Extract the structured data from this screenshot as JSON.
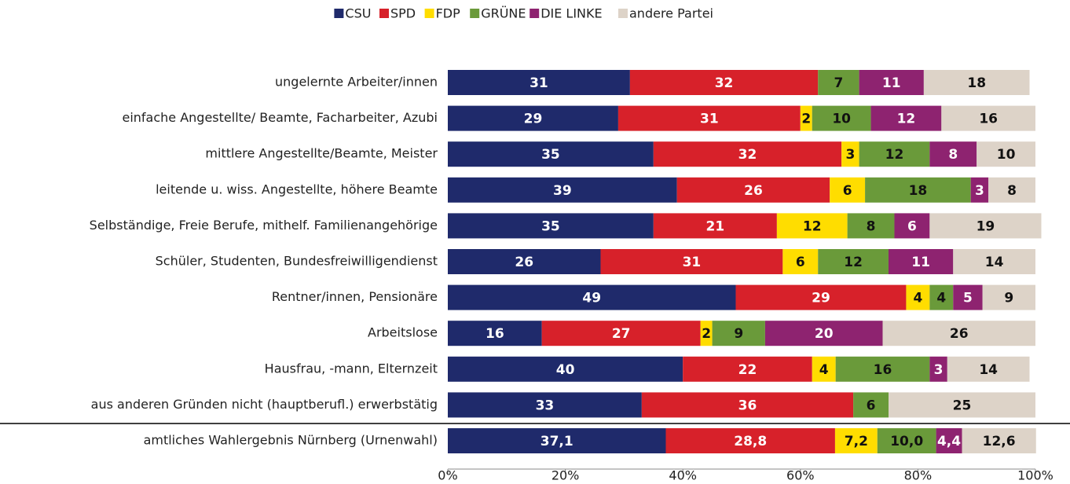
{
  "chart_data": {
    "type": "stacked-bar-horizontal",
    "categories": [
      "ungelernte Arbeiter/innen",
      "einfache Angestellte/ Beamte, Facharbeiter, Azubi",
      "mittlere Angestellte/Beamte, Meister",
      "leitende u. wiss. Angestellte, höhere Beamte",
      "Selbständige, Freie Berufe, mithelf. Familienangehörige",
      "Schüler, Studenten, Bundesfreiwilligendienst",
      "Rentner/innen, Pensionäre",
      "Arbeitslose",
      "Hausfrau, -mann, Elternzeit",
      "aus anderen Gründen nicht (hauptberufl.) erwerbstätig",
      "amtliches Wahlergebnis Nürnberg (Urnenwahl)"
    ],
    "series": [
      {
        "name": "CSU",
        "color": "#1f2a6b",
        "values": [
          31,
          29,
          35,
          39,
          35,
          26,
          49,
          16,
          40,
          33,
          37.1
        ],
        "value_labels": [
          "31",
          "29",
          "35",
          "39",
          "35",
          "26",
          "49",
          "16",
          "40",
          "33",
          "37,1"
        ]
      },
      {
        "name": "SPD",
        "color": "#d7212a",
        "values": [
          32,
          31,
          32,
          26,
          21,
          31,
          29,
          27,
          22,
          36,
          28.8
        ],
        "value_labels": [
          "32",
          "31",
          "32",
          "26",
          "21",
          "31",
          "29",
          "27",
          "22",
          "36",
          "28,8"
        ]
      },
      {
        "name": "FDP",
        "color": "#ffdd00",
        "values": [
          null,
          2,
          3,
          6,
          12,
          6,
          4,
          2,
          4,
          null,
          7.2
        ],
        "value_labels": [
          null,
          "2",
          "3",
          "6",
          "12",
          "6",
          "4",
          "2",
          "4",
          null,
          "7,2"
        ]
      },
      {
        "name": "GRÜNE",
        "color": "#6a9a3a",
        "values": [
          7,
          10,
          12,
          18,
          8,
          12,
          4,
          9,
          16,
          6,
          10.0
        ],
        "value_labels": [
          "7",
          "10",
          "12",
          "18",
          "8",
          "12",
          "4",
          "9",
          "16",
          "6",
          "10,0"
        ]
      },
      {
        "name": "DIE LINKE",
        "color": "#8e2370",
        "values": [
          11,
          12,
          8,
          3,
          6,
          11,
          5,
          20,
          3,
          null,
          4.4
        ],
        "value_labels": [
          "11",
          "12",
          "8",
          "3",
          "6",
          "11",
          "5",
          "20",
          "3",
          null,
          "4,4"
        ]
      },
      {
        "name": "andere Partei",
        "color": "#ddd3c8",
        "values": [
          18,
          16,
          10,
          8,
          19,
          14,
          9,
          26,
          14,
          25,
          12.6
        ],
        "value_labels": [
          "18",
          "16",
          "10",
          "8",
          "19",
          "14",
          "9",
          "26",
          "14",
          "25",
          "12,6"
        ]
      }
    ],
    "xlim": [
      0,
      100
    ],
    "xticks": [
      {
        "value": 0,
        "label": "0%"
      },
      {
        "value": 20,
        "label": "20%"
      },
      {
        "value": 40,
        "label": "40%"
      },
      {
        "value": 60,
        "label": "60%"
      },
      {
        "value": 80,
        "label": "80%"
      },
      {
        "value": 100,
        "label": "100%"
      }
    ],
    "legend": "top"
  }
}
